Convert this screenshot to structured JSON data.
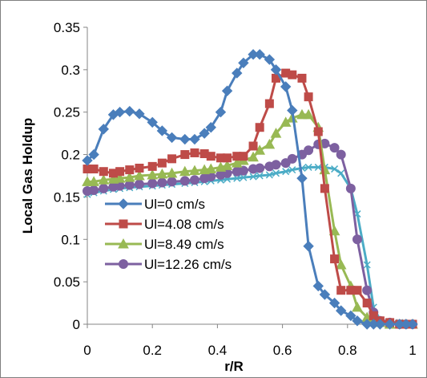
{
  "chart_data": {
    "type": "line",
    "title": "",
    "xlabel": "r/R",
    "ylabel": "Local Gas Holdup",
    "xlim": [
      0,
      1
    ],
    "ylim": [
      0,
      0.35
    ],
    "x_ticks": [
      "0",
      "0.2",
      "0.4",
      "0.6",
      "0.8",
      "1"
    ],
    "y_ticks": [
      "0",
      "0.05",
      "0.1",
      "0.15",
      "0.2",
      "0.25",
      "0.3",
      "0.35"
    ],
    "grid": false,
    "legend_position": "inside-lower-left",
    "series": [
      {
        "name": "Ul=0 cm/s",
        "color": "#4a7ebb",
        "marker": "diamond",
        "points": [
          [
            0,
            0.193
          ],
          [
            0.02,
            0.2
          ],
          [
            0.05,
            0.23
          ],
          [
            0.08,
            0.247
          ],
          [
            0.1,
            0.25
          ],
          [
            0.13,
            0.251
          ],
          [
            0.16,
            0.248
          ],
          [
            0.2,
            0.238
          ],
          [
            0.23,
            0.228
          ],
          [
            0.26,
            0.22
          ],
          [
            0.3,
            0.218
          ],
          [
            0.33,
            0.218
          ],
          [
            0.36,
            0.225
          ],
          [
            0.38,
            0.232
          ],
          [
            0.41,
            0.25
          ],
          [
            0.43,
            0.275
          ],
          [
            0.46,
            0.296
          ],
          [
            0.48,
            0.308
          ],
          [
            0.51,
            0.318
          ],
          [
            0.53,
            0.318
          ],
          [
            0.56,
            0.312
          ],
          [
            0.58,
            0.3
          ],
          [
            0.61,
            0.28
          ],
          [
            0.63,
            0.252
          ],
          [
            0.66,
            0.172
          ],
          [
            0.68,
            0.092
          ],
          [
            0.71,
            0.045
          ],
          [
            0.73,
            0.035
          ],
          [
            0.76,
            0.025
          ],
          [
            0.78,
            0.016
          ],
          [
            0.81,
            0.01
          ],
          [
            0.83,
            0.004
          ],
          [
            0.86,
            0
          ],
          [
            0.88,
            0
          ],
          [
            0.9,
            0
          ],
          [
            0.93,
            0
          ],
          [
            0.96,
            0
          ],
          [
            0.98,
            0
          ],
          [
            1.0,
            0
          ]
        ]
      },
      {
        "name": "Ul=4.08 cm/s",
        "color": "#be4b48",
        "marker": "square",
        "points": [
          [
            0,
            0.183
          ],
          [
            0.02,
            0.183
          ],
          [
            0.05,
            0.18
          ],
          [
            0.08,
            0.178
          ],
          [
            0.1,
            0.18
          ],
          [
            0.13,
            0.182
          ],
          [
            0.16,
            0.184
          ],
          [
            0.2,
            0.186
          ],
          [
            0.23,
            0.19
          ],
          [
            0.26,
            0.195
          ],
          [
            0.3,
            0.2
          ],
          [
            0.33,
            0.202
          ],
          [
            0.36,
            0.201
          ],
          [
            0.38,
            0.198
          ],
          [
            0.41,
            0.196
          ],
          [
            0.43,
            0.196
          ],
          [
            0.46,
            0.198
          ],
          [
            0.48,
            0.198
          ],
          [
            0.51,
            0.21
          ],
          [
            0.53,
            0.232
          ],
          [
            0.56,
            0.26
          ],
          [
            0.58,
            0.29
          ],
          [
            0.61,
            0.296
          ],
          [
            0.63,
            0.294
          ],
          [
            0.66,
            0.29
          ],
          [
            0.68,
            0.268
          ],
          [
            0.71,
            0.227
          ],
          [
            0.73,
            0.16
          ],
          [
            0.76,
            0.077
          ],
          [
            0.78,
            0.04
          ],
          [
            0.81,
            0.04
          ],
          [
            0.83,
            0.04
          ],
          [
            0.86,
            0.025
          ],
          [
            0.88,
            0.01
          ],
          [
            0.9,
            0.004
          ],
          [
            0.93,
            0.002
          ],
          [
            0.96,
            0
          ],
          [
            0.98,
            0
          ],
          [
            1.0,
            0
          ]
        ]
      },
      {
        "name": "Ul=8.49 cm/s",
        "color": "#98b954",
        "marker": "triangle",
        "points": [
          [
            0,
            0.168
          ],
          [
            0.02,
            0.168
          ],
          [
            0.05,
            0.17
          ],
          [
            0.08,
            0.171
          ],
          [
            0.1,
            0.172
          ],
          [
            0.13,
            0.173
          ],
          [
            0.16,
            0.175
          ],
          [
            0.2,
            0.176
          ],
          [
            0.23,
            0.177
          ],
          [
            0.26,
            0.178
          ],
          [
            0.3,
            0.18
          ],
          [
            0.33,
            0.181
          ],
          [
            0.36,
            0.182
          ],
          [
            0.38,
            0.183
          ],
          [
            0.41,
            0.185
          ],
          [
            0.43,
            0.187
          ],
          [
            0.46,
            0.19
          ],
          [
            0.48,
            0.193
          ],
          [
            0.51,
            0.197
          ],
          [
            0.53,
            0.205
          ],
          [
            0.56,
            0.212
          ],
          [
            0.58,
            0.225
          ],
          [
            0.61,
            0.238
          ],
          [
            0.63,
            0.243
          ],
          [
            0.66,
            0.247
          ],
          [
            0.68,
            0.247
          ],
          [
            0.71,
            0.232
          ],
          [
            0.73,
            0.182
          ],
          [
            0.76,
            0.11
          ],
          [
            0.78,
            0.07
          ],
          [
            0.81,
            0.045
          ],
          [
            0.83,
            0.02
          ],
          [
            0.86,
            0.008
          ],
          [
            0.88,
            0.004
          ],
          [
            0.9,
            0.002
          ],
          [
            0.93,
            0
          ],
          [
            0.96,
            0
          ],
          [
            0.98,
            0
          ],
          [
            1.0,
            0
          ]
        ]
      },
      {
        "name": "Ul=12.26 cm/s",
        "color": "#7d60a0",
        "marker": "circle",
        "points": [
          [
            0,
            0.157
          ],
          [
            0.02,
            0.158
          ],
          [
            0.05,
            0.16
          ],
          [
            0.08,
            0.162
          ],
          [
            0.1,
            0.163
          ],
          [
            0.13,
            0.164
          ],
          [
            0.16,
            0.165
          ],
          [
            0.2,
            0.166
          ],
          [
            0.23,
            0.167
          ],
          [
            0.26,
            0.168
          ],
          [
            0.3,
            0.169
          ],
          [
            0.33,
            0.17
          ],
          [
            0.36,
            0.172
          ],
          [
            0.38,
            0.174
          ],
          [
            0.41,
            0.176
          ],
          [
            0.43,
            0.178
          ],
          [
            0.46,
            0.18
          ],
          [
            0.48,
            0.181
          ],
          [
            0.51,
            0.183
          ],
          [
            0.53,
            0.184
          ],
          [
            0.56,
            0.186
          ],
          [
            0.58,
            0.188
          ],
          [
            0.61,
            0.19
          ],
          [
            0.63,
            0.195
          ],
          [
            0.66,
            0.2
          ],
          [
            0.68,
            0.205
          ],
          [
            0.71,
            0.212
          ],
          [
            0.73,
            0.213
          ],
          [
            0.76,
            0.208
          ],
          [
            0.78,
            0.2
          ],
          [
            0.81,
            0.16
          ],
          [
            0.83,
            0.1
          ],
          [
            0.86,
            0.04
          ],
          [
            0.88,
            0.014
          ],
          [
            0.9,
            0.004
          ],
          [
            0.93,
            0.002
          ],
          [
            0.96,
            0
          ],
          [
            0.98,
            0
          ],
          [
            1.0,
            0
          ]
        ]
      },
      {
        "name": "",
        "color": "#4bacc6",
        "marker": "x",
        "points": [
          [
            0,
            0.153
          ],
          [
            0.02,
            0.155
          ],
          [
            0.05,
            0.157
          ],
          [
            0.08,
            0.159
          ],
          [
            0.1,
            0.16
          ],
          [
            0.13,
            0.161
          ],
          [
            0.16,
            0.162
          ],
          [
            0.2,
            0.163
          ],
          [
            0.23,
            0.164
          ],
          [
            0.26,
            0.165
          ],
          [
            0.3,
            0.166
          ],
          [
            0.33,
            0.167
          ],
          [
            0.36,
            0.168
          ],
          [
            0.38,
            0.169
          ],
          [
            0.41,
            0.17
          ],
          [
            0.43,
            0.171
          ],
          [
            0.46,
            0.172
          ],
          [
            0.48,
            0.173
          ],
          [
            0.51,
            0.174
          ],
          [
            0.53,
            0.175
          ],
          [
            0.56,
            0.176
          ],
          [
            0.58,
            0.178
          ],
          [
            0.61,
            0.18
          ],
          [
            0.63,
            0.182
          ],
          [
            0.66,
            0.184
          ],
          [
            0.68,
            0.185
          ],
          [
            0.71,
            0.185
          ],
          [
            0.73,
            0.185
          ],
          [
            0.76,
            0.183
          ],
          [
            0.78,
            0.178
          ],
          [
            0.81,
            0.16
          ],
          [
            0.83,
            0.13
          ],
          [
            0.86,
            0.07
          ],
          [
            0.88,
            0.02
          ],
          [
            0.9,
            0.005
          ],
          [
            0.93,
            0.003
          ],
          [
            0.96,
            0.002
          ],
          [
            0.98,
            0.001
          ],
          [
            1.0,
            0.001
          ]
        ]
      }
    ]
  }
}
